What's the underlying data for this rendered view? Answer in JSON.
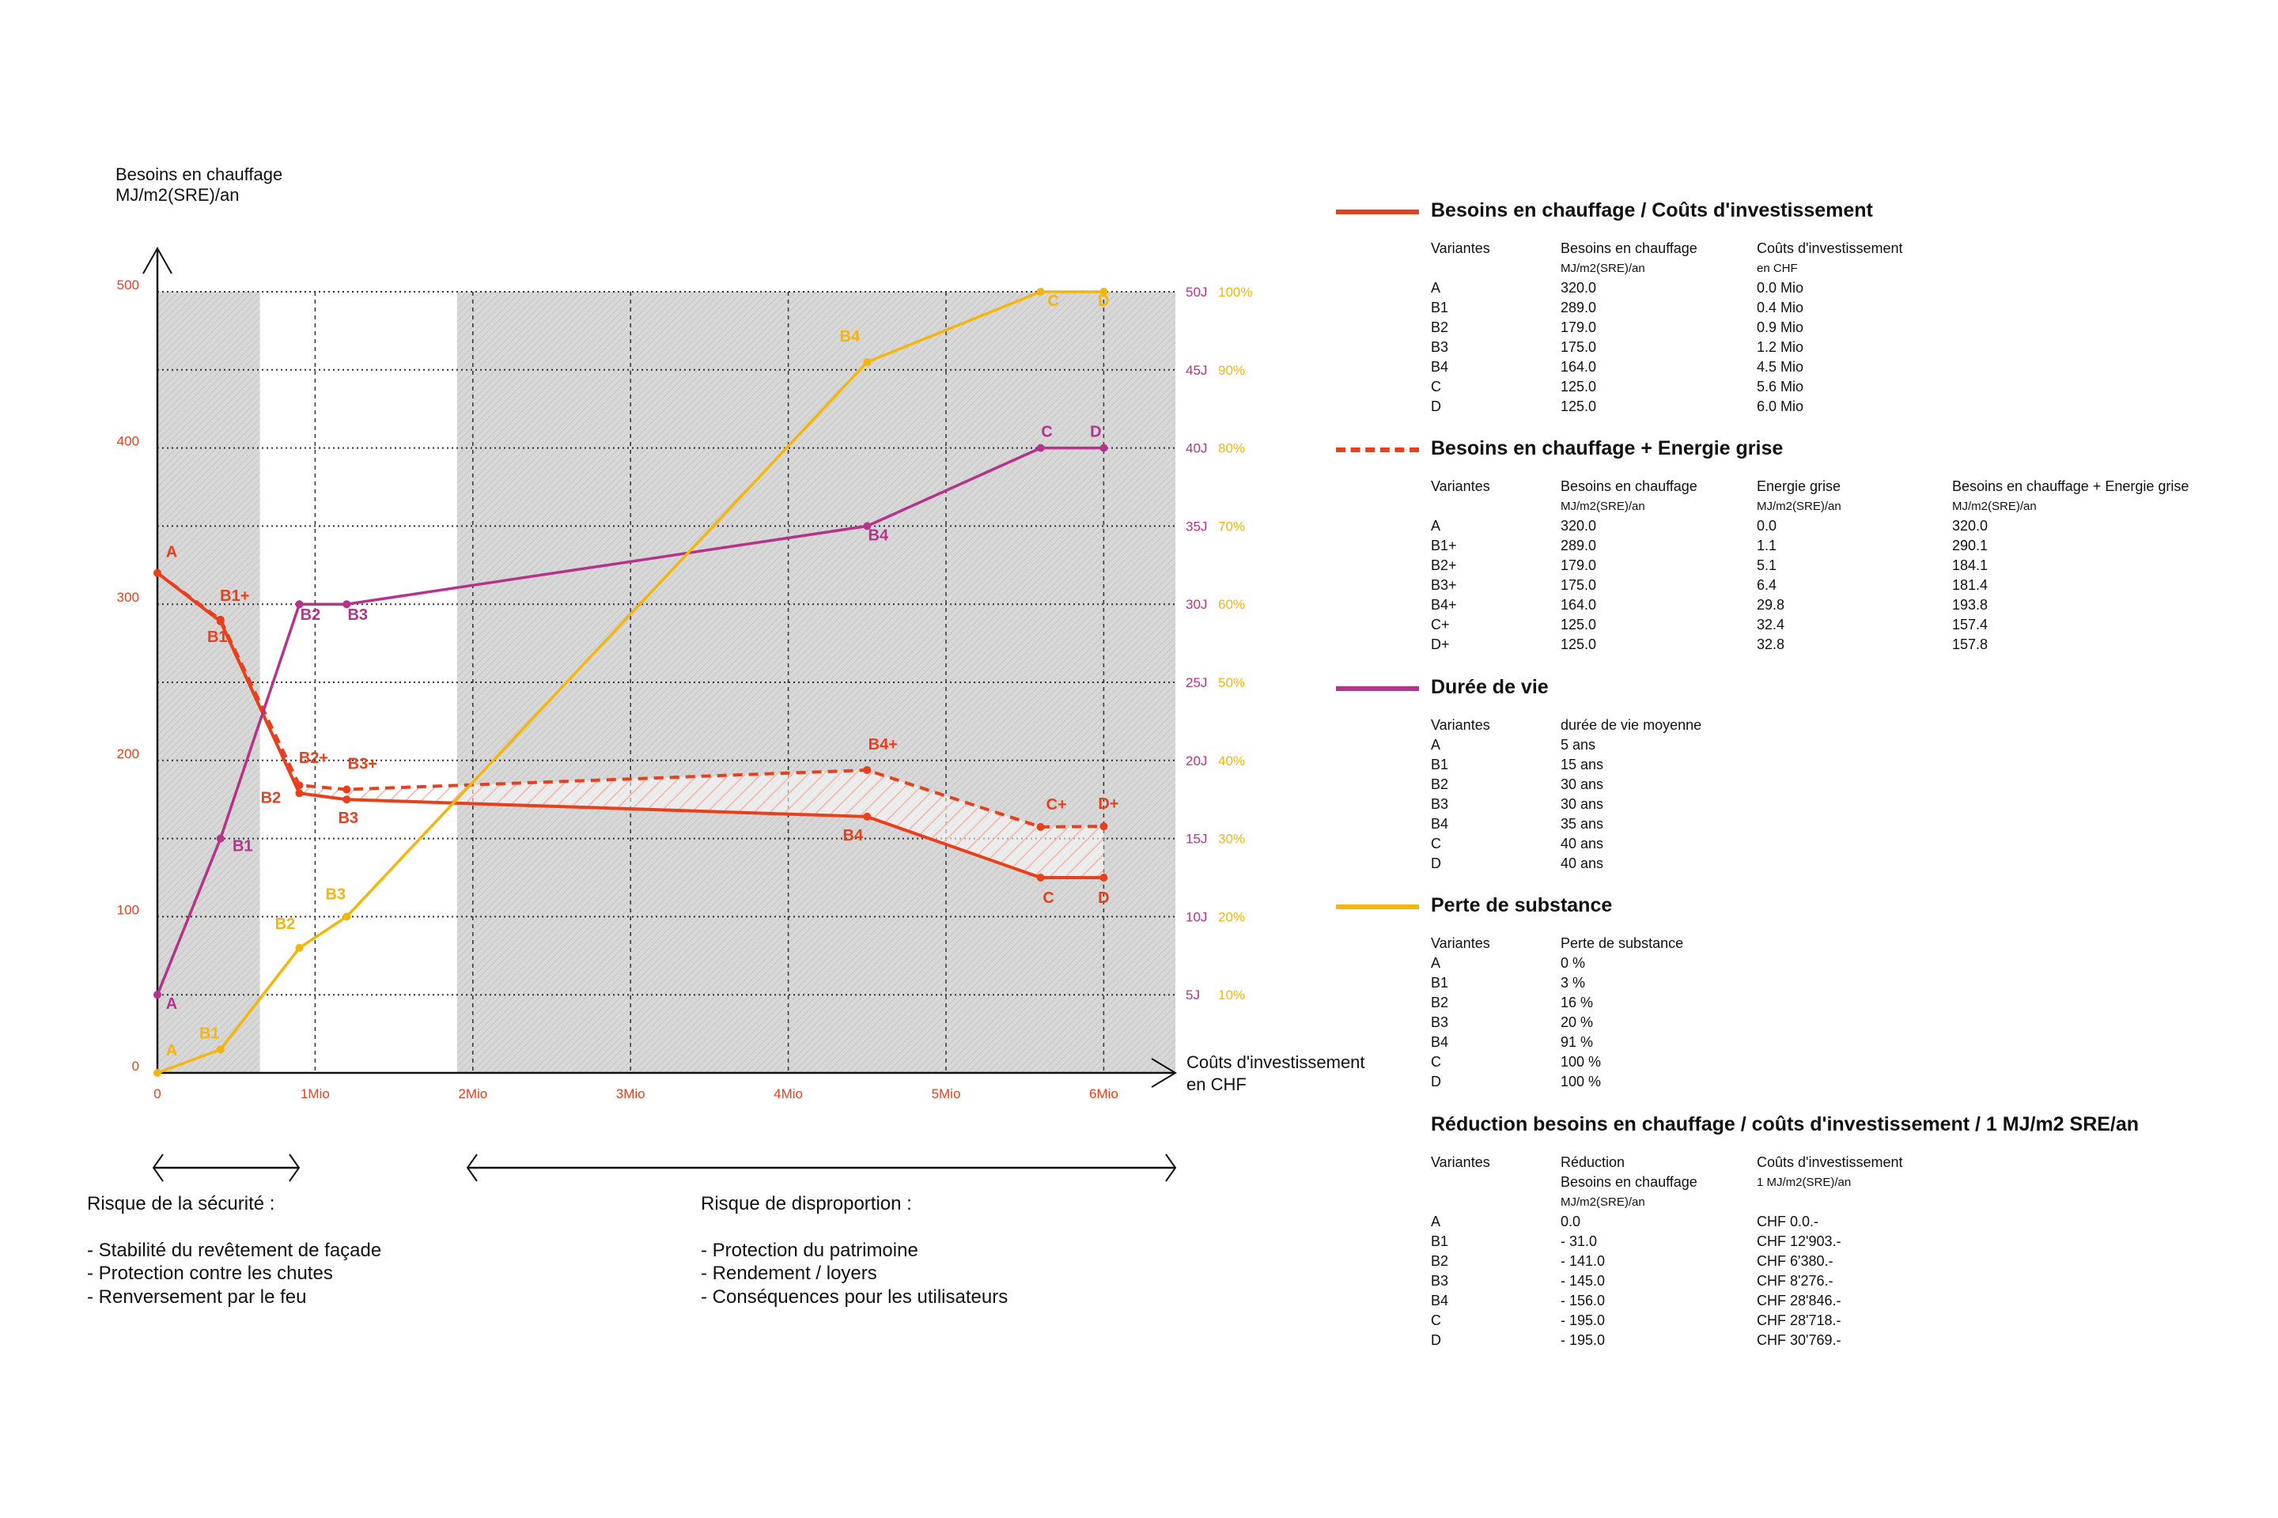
{
  "colors": {
    "heating": "#e8401c",
    "lifespan": "#b5338a",
    "substance": "#f5b50a",
    "shade": "#d6d6d6"
  },
  "chart_data": {
    "type": "line",
    "ylabel": [
      "Besoins en chauffage",
      "MJ/m2(SRE)/an"
    ],
    "xlabel": [
      "Coûts d'investissement",
      "en CHF"
    ],
    "xlim": [
      0,
      6.5
    ],
    "ylim": [
      0,
      500
    ],
    "x_ticks": [
      {
        "v": 0,
        "label": "0"
      },
      {
        "v": 1,
        "label": "1Mio"
      },
      {
        "v": 2,
        "label": "2Mio"
      },
      {
        "v": 3,
        "label": "3Mio"
      },
      {
        "v": 4,
        "label": "4Mio"
      },
      {
        "v": 5,
        "label": "5Mio"
      },
      {
        "v": 6,
        "label": "6Mio"
      }
    ],
    "y_ticks": [
      {
        "v": 0,
        "label": "0"
      },
      {
        "v": 100,
        "label": "100"
      },
      {
        "v": 200,
        "label": "200"
      },
      {
        "v": 300,
        "label": "300"
      },
      {
        "v": 400,
        "label": "400"
      },
      {
        "v": 500,
        "label": "500"
      }
    ],
    "right_ticks_lifespan": [
      {
        "v": 5,
        "label": "5J"
      },
      {
        "v": 10,
        "label": "10J"
      },
      {
        "v": 15,
        "label": "15J"
      },
      {
        "v": 20,
        "label": "20J"
      },
      {
        "v": 25,
        "label": "25J"
      },
      {
        "v": 30,
        "label": "30J"
      },
      {
        "v": 35,
        "label": "35J"
      },
      {
        "v": 40,
        "label": "40J"
      },
      {
        "v": 45,
        "label": "45J"
      },
      {
        "v": 50,
        "label": "50J"
      }
    ],
    "right_ticks_substance": [
      {
        "v": 10,
        "label": "10%"
      },
      {
        "v": 20,
        "label": "20%"
      },
      {
        "v": 30,
        "label": "30%"
      },
      {
        "v": 40,
        "label": "40%"
      },
      {
        "v": 50,
        "label": "50%"
      },
      {
        "v": 60,
        "label": "60%"
      },
      {
        "v": 70,
        "label": "70%"
      },
      {
        "v": 80,
        "label": "80%"
      },
      {
        "v": 90,
        "label": "90%"
      },
      {
        "v": 100,
        "label": "100%"
      }
    ],
    "grid": true,
    "shaded_x_ranges_mio": [
      [
        0,
        0.65
      ],
      [
        1.9,
        6.5
      ]
    ],
    "x": [
      0,
      0.4,
      0.9,
      1.2,
      4.5,
      5.6,
      6.0
    ],
    "series": [
      {
        "key": "heating",
        "style": "solid",
        "axis": "left",
        "labels": [
          "A",
          "B1",
          "B2",
          "B3",
          "B4",
          "C",
          "D"
        ],
        "values": [
          320,
          289,
          179,
          175,
          164,
          125,
          125
        ]
      },
      {
        "key": "heating_grey",
        "style": "dashed",
        "axis": "left",
        "labels": [
          "",
          "B1+",
          "B2+",
          "B3+",
          "B4+",
          "C+",
          "D+"
        ],
        "values": [
          320,
          290.1,
          184.1,
          181.4,
          193.8,
          157.4,
          157.8
        ]
      },
      {
        "key": "lifespan",
        "style": "solid",
        "axis": "right_years",
        "labels": [
          "A",
          "B1",
          "B2",
          "B3",
          "B4",
          "C",
          "D"
        ],
        "values": [
          5,
          15,
          30,
          30,
          35,
          40,
          40
        ]
      },
      {
        "key": "substance",
        "style": "solid",
        "axis": "right_percent",
        "labels": [
          "A",
          "B1",
          "B2",
          "B3",
          "B4",
          "C",
          "D"
        ],
        "values": [
          0,
          3,
          16,
          20,
          91,
          100,
          100
        ]
      }
    ]
  },
  "risks": {
    "safety": {
      "title": "Risque de la sécurité :",
      "items": [
        "- Stabilité du revêtement de façade",
        "- Protection contre les chutes",
        "- Renversement par le feu"
      ]
    },
    "disproportion": {
      "title": "Risque de disproportion :",
      "items": [
        "- Protection du patrimoine",
        "- Rendement / loyers",
        "- Conséquences pour les utilisateurs"
      ]
    }
  },
  "legend": [
    {
      "title": "Besoins en chauffage / Coûts d'investissement",
      "color": "#e8401c",
      "line": "solid",
      "columns": [
        [
          "Variantes"
        ],
        [
          "Besoins en chauffage",
          "MJ/m2(SRE)/an"
        ],
        [
          "Coûts d'investissement",
          "en CHF"
        ]
      ],
      "rows": [
        [
          "A",
          "320.0",
          "0.0 Mio"
        ],
        [
          "B1",
          "289.0",
          "0.4 Mio"
        ],
        [
          "B2",
          "179.0",
          "0.9 Mio"
        ],
        [
          "B3",
          "175.0",
          "1.2 Mio"
        ],
        [
          "B4",
          "164.0",
          "4.5 Mio"
        ],
        [
          "C",
          "125.0",
          "5.6 Mio"
        ],
        [
          "D",
          "125.0",
          "6.0 Mio"
        ]
      ]
    },
    {
      "title": "Besoins en chauffage + Energie grise",
      "color": "#e8401c",
      "line": "dashed",
      "columns": [
        [
          "Variantes"
        ],
        [
          "Besoins en chauffage",
          "MJ/m2(SRE)/an"
        ],
        [
          "Energie grise",
          "MJ/m2(SRE)/an"
        ],
        [
          "Besoins en chauffage + Energie grise",
          "MJ/m2(SRE)/an"
        ]
      ],
      "rows": [
        [
          "A",
          "320.0",
          "0.0",
          "320.0"
        ],
        [
          "B1+",
          "289.0",
          "1.1",
          "290.1"
        ],
        [
          "B2+",
          "179.0",
          "5.1",
          "184.1"
        ],
        [
          "B3+",
          "175.0",
          "6.4",
          "181.4"
        ],
        [
          "B4+",
          "164.0",
          "29.8",
          "193.8"
        ],
        [
          "C+",
          "125.0",
          "32.4",
          "157.4"
        ],
        [
          "D+",
          "125.0",
          "32.8",
          "157.8"
        ]
      ]
    },
    {
      "title": "Durée de vie",
      "color": "#b5338a",
      "line": "solid",
      "columns": [
        [
          "Variantes"
        ],
        [
          "durée de vie moyenne"
        ]
      ],
      "rows": [
        [
          "A",
          "5   ans"
        ],
        [
          "B1",
          "15 ans"
        ],
        [
          "B2",
          "30 ans"
        ],
        [
          "B3",
          "30 ans"
        ],
        [
          "B4",
          "35 ans"
        ],
        [
          "C",
          "40 ans"
        ],
        [
          "D",
          "40 ans"
        ]
      ]
    },
    {
      "title": "Perte de substance",
      "color": "#f5b50a",
      "line": "solid",
      "columns": [
        [
          "Variantes"
        ],
        [
          "Perte de substance"
        ]
      ],
      "rows": [
        [
          "A",
          "0 %"
        ],
        [
          "B1",
          "3 %"
        ],
        [
          "B2",
          "16 %"
        ],
        [
          "B3",
          "20 %"
        ],
        [
          "B4",
          "91 %"
        ],
        [
          "C",
          "100 %"
        ],
        [
          "D",
          "100 %"
        ]
      ]
    },
    {
      "title": "Réduction besoins en chauffage / coûts d'investissement / 1 MJ/m2 SRE/an",
      "color": "",
      "line": "none",
      "columns": [
        [
          "Variantes"
        ],
        [
          "Réduction",
          "Besoins en chauffage",
          "MJ/m2(SRE)/an"
        ],
        [
          "Coûts d'investissement",
          "1 MJ/m2(SRE)/an"
        ]
      ],
      "rows": [
        [
          "A",
          "0.0",
          "CHF 0.0.-"
        ],
        [
          "B1",
          "- 31.0",
          "CHF 12'903.-"
        ],
        [
          "B2",
          "- 141.0",
          "CHF 6'380.-"
        ],
        [
          "B3",
          "- 145.0",
          "CHF 8'276.-"
        ],
        [
          "B4",
          "- 156.0",
          "CHF 28'846.-"
        ],
        [
          "C",
          "- 195.0",
          "CHF 28'718.-"
        ],
        [
          "D",
          "- 195.0",
          "CHF 30'769.-"
        ]
      ]
    }
  ]
}
